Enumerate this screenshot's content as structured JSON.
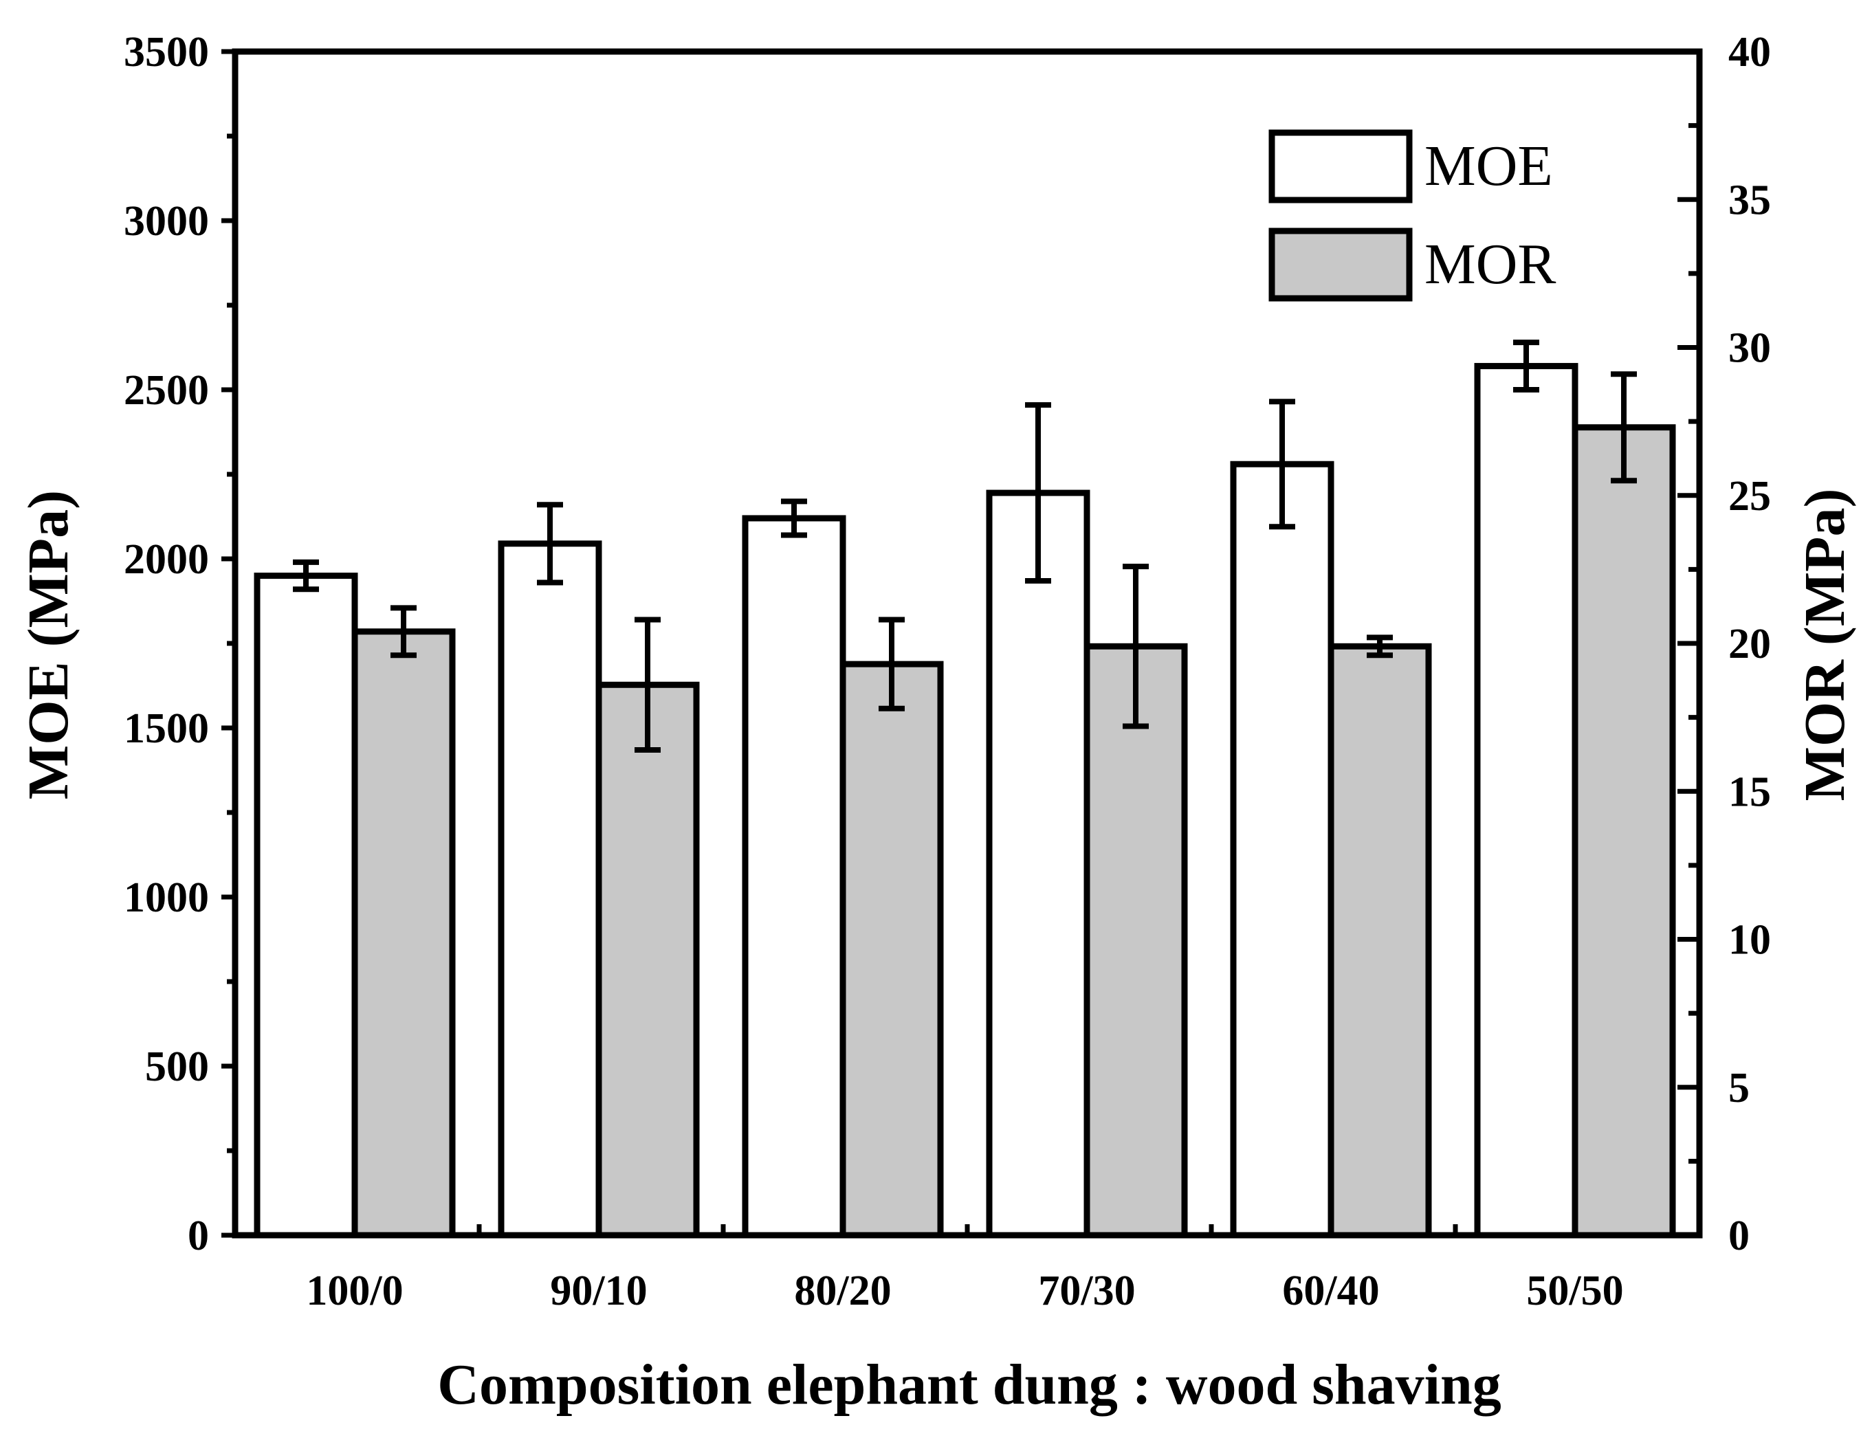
{
  "chart_data": {
    "type": "bar",
    "xlabel": "Composition elephant dung : wood shaving",
    "ylabel_left": "MOE (MPa)",
    "ylabel_right": "MOR (MPa)",
    "categories": [
      "100/0",
      "90/10",
      "80/20",
      "70/30",
      "60/40",
      "50/50"
    ],
    "y_left": {
      "range": [
        0,
        3500
      ],
      "ticks": [
        0,
        500,
        1000,
        1500,
        2000,
        2500,
        3000,
        3500
      ],
      "tick_labels": [
        "0",
        "500",
        "1000",
        "1500",
        "2000",
        "2500",
        "3000",
        "3500"
      ]
    },
    "y_right": {
      "range": [
        0,
        40
      ],
      "ticks": [
        0,
        5,
        10,
        15,
        20,
        25,
        30,
        35,
        40
      ],
      "tick_labels": [
        "0",
        "5",
        "10",
        "15",
        "20",
        "25",
        "30",
        "35",
        "40"
      ]
    },
    "series": [
      {
        "name": "MOE",
        "axis": "left",
        "color": "#ffffff",
        "values": [
          1950,
          2045,
          2120,
          2195,
          2280,
          2570
        ],
        "errors": [
          40,
          115,
          50,
          260,
          185,
          70
        ]
      },
      {
        "name": "MOR",
        "axis": "right",
        "color": "#c8c8c8",
        "values": [
          20.4,
          18.6,
          19.3,
          19.9,
          19.9,
          27.3
        ],
        "errors": [
          0.8,
          2.2,
          1.5,
          2.7,
          0.3,
          1.8
        ]
      }
    ],
    "legend": {
      "position": "top-right",
      "entries": [
        "MOE",
        "MOR"
      ]
    },
    "grid": false
  }
}
